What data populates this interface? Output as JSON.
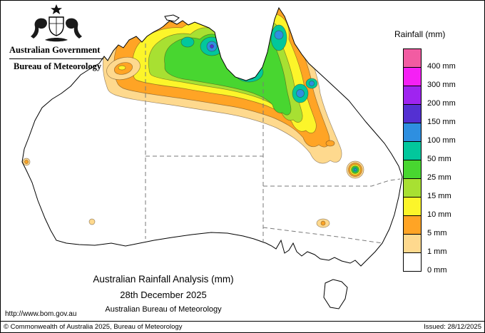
{
  "header": {
    "government": "Australian Government",
    "bureau": "Bureau of Meteorology"
  },
  "legend": {
    "title": "Rainfall (mm)",
    "entries": [
      {
        "key": "400",
        "label": "400 mm",
        "color": "#f25ca2"
      },
      {
        "key": "300",
        "label": "300 mm",
        "color": "#f520f5"
      },
      {
        "key": "200",
        "label": "200 mm",
        "color": "#9f24f0"
      },
      {
        "key": "150",
        "label": "150 mm",
        "color": "#5430d2"
      },
      {
        "key": "100",
        "label": "100 mm",
        "color": "#2e8fe0"
      },
      {
        "key": "50",
        "label": "50 mm",
        "color": "#02c79c"
      },
      {
        "key": "25",
        "label": "25 mm",
        "color": "#48d630"
      },
      {
        "key": "15",
        "label": "15 mm",
        "color": "#a8e032"
      },
      {
        "key": "10",
        "label": "10 mm",
        "color": "#fcf52a"
      },
      {
        "key": "5",
        "label": "5 mm",
        "color": "#ffa425"
      },
      {
        "key": "1",
        "label": "1 mm",
        "color": "#fed98e"
      },
      {
        "key": "0",
        "label": "0 mm",
        "color": "#ffffff"
      }
    ]
  },
  "caption": {
    "title": "Australian Rainfall Analysis (mm)",
    "date": "28th December 2025",
    "org": "Australian Bureau of Meteorology"
  },
  "footer": {
    "url": "http://www.bom.gov.au",
    "copyright": "© Commonwealth of Australia 2025, Bureau of Meteorology",
    "issued": "Issued: 28/12/2025"
  }
}
